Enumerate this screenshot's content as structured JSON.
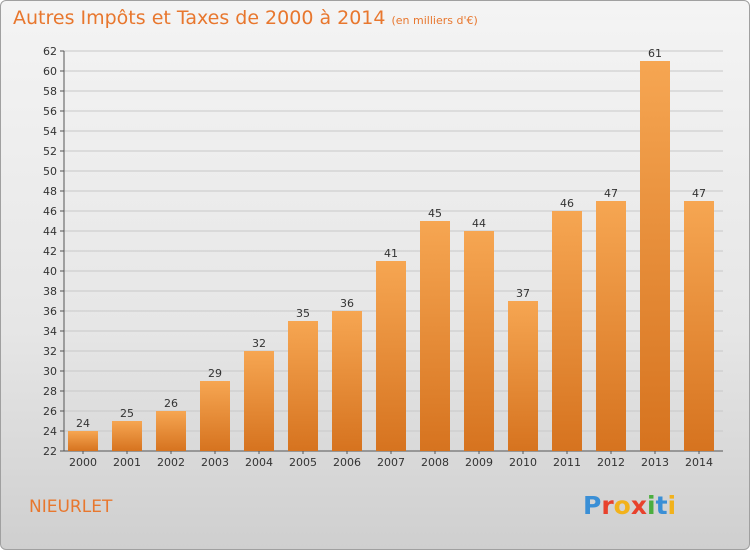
{
  "chart_data": {
    "type": "bar",
    "title": "Autres Impôts et Taxes de 2000 à 2014",
    "subtitle": "(en milliers d'€)",
    "categories": [
      "2000",
      "2001",
      "2002",
      "2003",
      "2004",
      "2005",
      "2006",
      "2007",
      "2008",
      "2009",
      "2010",
      "2011",
      "2012",
      "2013",
      "2014"
    ],
    "values": [
      24,
      25,
      26,
      29,
      32,
      35,
      36,
      41,
      45,
      44,
      37,
      46,
      47,
      61,
      47
    ],
    "ylim": [
      22,
      62
    ],
    "yticks": [
      22,
      24,
      26,
      28,
      30,
      32,
      34,
      36,
      38,
      40,
      42,
      44,
      46,
      48,
      50,
      52,
      54,
      56,
      58,
      60,
      62
    ],
    "grid": true,
    "bar_color": "#f0913a"
  },
  "commune": "NIEURLET",
  "logo": {
    "letters": [
      "P",
      "r",
      "o",
      "x",
      "i",
      "t",
      "i"
    ],
    "colors": [
      "#3a8fd6",
      "#e8412c",
      "#f2b21b",
      "#e8412c",
      "#4bae3f",
      "#3a8fd6",
      "#f2b21b"
    ]
  }
}
